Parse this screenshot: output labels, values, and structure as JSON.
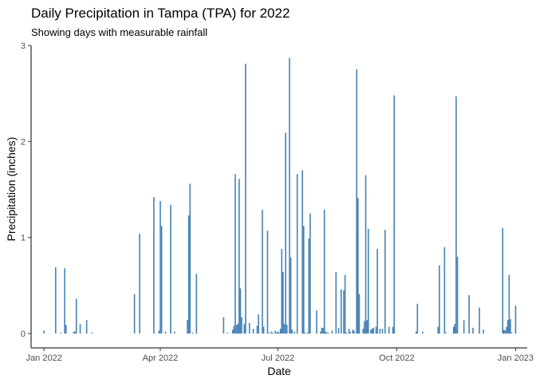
{
  "chart_data": {
    "type": "bar",
    "title": "Daily Precipitation in Tampa (TPA) for 2022",
    "subtitle": "Showing days with measurable rainfall",
    "xlabel": "Date",
    "ylabel": "Precipitation (inches)",
    "ylim": [
      0,
      3
    ],
    "y_ticks": [
      0,
      1,
      2,
      3
    ],
    "x_range": [
      "2021-12-22",
      "2023-01-10"
    ],
    "x_ticks": [
      {
        "date": "2022-01-01",
        "label": "Jan 2022"
      },
      {
        "date": "2022-04-01",
        "label": "Apr 2022"
      },
      {
        "date": "2022-07-01",
        "label": "Jul 2022"
      },
      {
        "date": "2022-10-01",
        "label": "Oct 2022"
      },
      {
        "date": "2023-01-01",
        "label": "Jan 2023"
      }
    ],
    "grid": false,
    "bar_color": "#4682B4",
    "series": [
      {
        "x": [
          "2022-01-01",
          "2022-01-10",
          "2022-01-14",
          "2022-01-17",
          "2022-01-18",
          "2022-01-24",
          "2022-01-25",
          "2022-01-26",
          "2022-01-29",
          "2022-02-03",
          "2022-02-07",
          "2022-03-12",
          "2022-03-16",
          "2022-03-27",
          "2022-03-31",
          "2022-04-01",
          "2022-04-02",
          "2022-04-05",
          "2022-04-09",
          "2022-04-12",
          "2022-04-22",
          "2022-04-23",
          "2022-04-24",
          "2022-04-26",
          "2022-04-29",
          "2022-05-20",
          "2022-05-23",
          "2022-05-27",
          "2022-05-28",
          "2022-05-29",
          "2022-05-30",
          "2022-05-31",
          "2022-06-01",
          "2022-06-02",
          "2022-06-03",
          "2022-06-05",
          "2022-06-06",
          "2022-06-09",
          "2022-06-12",
          "2022-06-15",
          "2022-06-16",
          "2022-06-19",
          "2022-06-20",
          "2022-06-23",
          "2022-06-24",
          "2022-06-26",
          "2022-06-27",
          "2022-06-29",
          "2022-06-30",
          "2022-07-01",
          "2022-07-02",
          "2022-07-03",
          "2022-07-04",
          "2022-07-05",
          "2022-07-06",
          "2022-07-07",
          "2022-07-08",
          "2022-07-10",
          "2022-07-11",
          "2022-07-12",
          "2022-07-14",
          "2022-07-16",
          "2022-07-20",
          "2022-07-21",
          "2022-07-22",
          "2022-07-24",
          "2022-07-25",
          "2022-07-26",
          "2022-07-31",
          "2022-08-03",
          "2022-08-04",
          "2022-08-05",
          "2022-08-06",
          "2022-08-07",
          "2022-08-08",
          "2022-08-09",
          "2022-08-12",
          "2022-08-15",
          "2022-08-17",
          "2022-08-19",
          "2022-08-21",
          "2022-08-22",
          "2022-08-23",
          "2022-08-25",
          "2022-08-26",
          "2022-08-28",
          "2022-08-29",
          "2022-08-31",
          "2022-09-01",
          "2022-09-02",
          "2022-09-05",
          "2022-09-06",
          "2022-09-07",
          "2022-09-08",
          "2022-09-09",
          "2022-09-11",
          "2022-09-12",
          "2022-09-13",
          "2022-09-15",
          "2022-09-16",
          "2022-09-18",
          "2022-09-20",
          "2022-09-22",
          "2022-09-25",
          "2022-09-28",
          "2022-09-29",
          "2022-10-16",
          "2022-10-17",
          "2022-10-21",
          "2022-11-02",
          "2022-11-03",
          "2022-11-07",
          "2022-11-08",
          "2022-11-14",
          "2022-11-15",
          "2022-11-16",
          "2022-11-17",
          "2022-11-22",
          "2022-11-26",
          "2022-11-29",
          "2022-12-04",
          "2022-12-07",
          "2022-12-22",
          "2022-12-23",
          "2022-12-24",
          "2022-12-25",
          "2022-12-26",
          "2022-12-27",
          "2022-12-28",
          "2022-12-29",
          "2023-01-01"
        ],
        "y": [
          0.03,
          0.69,
          0.01,
          0.68,
          0.09,
          0.02,
          0.02,
          0.36,
          0.1,
          0.14,
          0.01,
          0.41,
          1.04,
          1.42,
          0.03,
          1.38,
          1.12,
          0.02,
          1.34,
          0.02,
          0.14,
          1.23,
          1.56,
          0.01,
          0.62,
          0.17,
          0.01,
          0.04,
          0.08,
          1.66,
          0.09,
          0.1,
          1.61,
          0.47,
          0.17,
          0.1,
          2.81,
          0.11,
          0.05,
          0.08,
          0.2,
          1.29,
          0.07,
          1.07,
          0.01,
          0.02,
          0.01,
          0.03,
          0.01,
          0.02,
          0.01,
          0.05,
          0.88,
          0.64,
          0.1,
          2.09,
          0.09,
          2.87,
          0.79,
          0.04,
          0.02,
          1.66,
          1.7,
          1.12,
          0.01,
          0.01,
          0.99,
          1.25,
          0.24,
          0.02,
          0.06,
          0.06,
          1.29,
          0.02,
          0.01,
          0.01,
          0.03,
          0.64,
          0.06,
          0.46,
          0.45,
          0.61,
          0.01,
          0.05,
          0.02,
          0.04,
          0.03,
          2.75,
          1.41,
          0.41,
          0.05,
          0.13,
          1.65,
          0.14,
          1.09,
          0.04,
          0.05,
          0.06,
          0.07,
          0.88,
          0.05,
          0.05,
          1.08,
          0.07,
          0.07,
          2.48,
          0.02,
          0.31,
          0.02,
          0.07,
          0.71,
          0.9,
          0.01,
          0.07,
          0.1,
          2.47,
          0.8,
          0.14,
          0.4,
          0.06,
          0.27,
          0.04,
          1.1,
          0.04,
          0.03,
          0.07,
          0.14,
          0.61,
          0.15,
          0.01,
          0.29
        ]
      }
    ]
  }
}
